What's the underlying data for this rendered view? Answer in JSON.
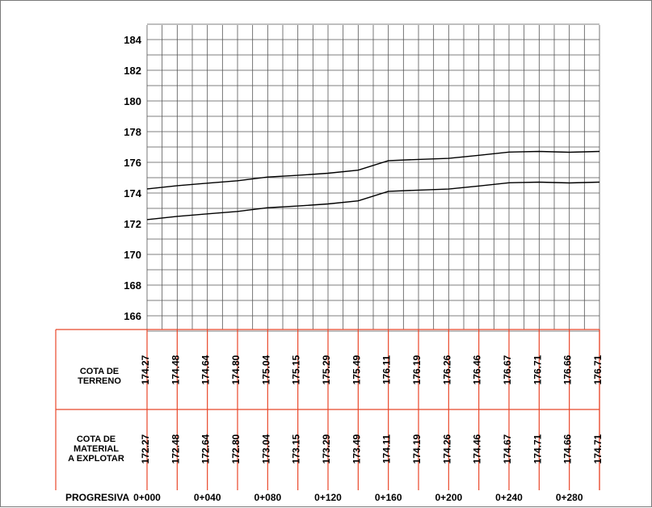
{
  "chart_data": {
    "type": "line",
    "y_ticks": [
      184,
      182,
      180,
      178,
      176,
      174,
      172,
      170,
      168,
      166
    ],
    "ylim": [
      165,
      185
    ],
    "x": [
      0,
      20,
      40,
      60,
      80,
      100,
      120,
      140,
      160,
      180,
      200,
      220,
      240,
      260,
      280,
      300
    ],
    "series": [
      {
        "name": "",
        "values": [
          174.27,
          174.48,
          174.64,
          174.8,
          175.04,
          175.15,
          175.29,
          175.49,
          176.11,
          176.19,
          176.26,
          176.46,
          176.67,
          176.71,
          176.66,
          176.71
        ]
      },
      {
        "name": "",
        "values": [
          172.27,
          172.48,
          172.64,
          172.8,
          173.04,
          173.15,
          173.29,
          173.49,
          174.11,
          174.19,
          174.26,
          174.46,
          174.67,
          174.71,
          174.66,
          174.71
        ]
      }
    ],
    "grid": true,
    "colors": {
      "grid": "#555555",
      "table": "#e8472a",
      "profile": "#000000"
    }
  },
  "table": {
    "row1_label": [
      "COTA DE",
      "TERRENO"
    ],
    "row2_label": [
      "COTA DE",
      "MATERIAL",
      "A EXPLOTAR"
    ],
    "row1_values": [
      "174.27",
      "174.48",
      "174.64",
      "174.80",
      "175.04",
      "175.15",
      "175.29",
      "175.49",
      "176.11",
      "176.19",
      "176.26",
      "176.46",
      "176.67",
      "176.71",
      "176.66",
      "176.71"
    ],
    "row2_values": [
      "172.27",
      "172.48",
      "172.64",
      "172.80",
      "173.04",
      "173.15",
      "173.29",
      "173.49",
      "174.11",
      "174.19",
      "174.26",
      "174.46",
      "174.67",
      "174.71",
      "174.66",
      "174.71"
    ]
  },
  "progresiva": {
    "label": "PROGRESIVA",
    "stations": [
      "0+000",
      "0+040",
      "0+080",
      "0+120",
      "0+160",
      "0+200",
      "0+240",
      "0+280"
    ]
  }
}
